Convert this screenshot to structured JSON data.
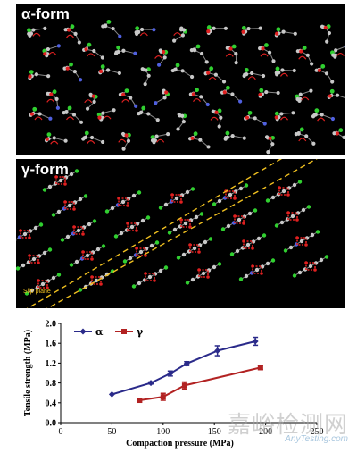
{
  "panels": {
    "alpha": {
      "title": "α-form"
    },
    "gamma": {
      "title": "γ-form",
      "slip_label": "Slip plane"
    }
  },
  "colors": {
    "atom_carbon": "#c8c8c8",
    "atom_oxygen": "#e02020",
    "atom_chlorine": "#30d030",
    "atom_nitrogen": "#5060e0",
    "slip_plane": "#f0c020",
    "series_alpha": "#2a2a8a",
    "series_gamma": "#b22222"
  },
  "chart_data": {
    "type": "line",
    "title": "",
    "xlabel": "Compaction pressure (MPa)",
    "ylabel": "Tensile strength (MPa)",
    "xlim": [
      0,
      250
    ],
    "ylim": [
      0.0,
      2.0
    ],
    "xticks": [
      "0",
      "50",
      "100",
      "150",
      "200",
      "250"
    ],
    "yticks": [
      "0.0",
      "0.4",
      "0.8",
      "1.2",
      "1.6",
      "2.0"
    ],
    "legend_position": "top-left",
    "series": [
      {
        "name": "α",
        "marker": "diamond",
        "color": "#2a2a8a",
        "x": [
          50,
          88,
          107,
          123,
          153,
          190
        ],
        "y": [
          0.57,
          0.8,
          0.99,
          1.19,
          1.45,
          1.64
        ],
        "err": [
          0.0,
          0.02,
          0.05,
          0.04,
          0.1,
          0.08
        ]
      },
      {
        "name": "γ",
        "marker": "square",
        "color": "#b22222",
        "x": [
          77,
          100,
          121,
          195
        ],
        "y": [
          0.45,
          0.52,
          0.75,
          1.11
        ],
        "err": [
          0.0,
          0.07,
          0.07,
          0.04
        ]
      }
    ]
  },
  "watermark": {
    "cn": "嘉峪检测网",
    "en": "AnyTesting.com"
  }
}
